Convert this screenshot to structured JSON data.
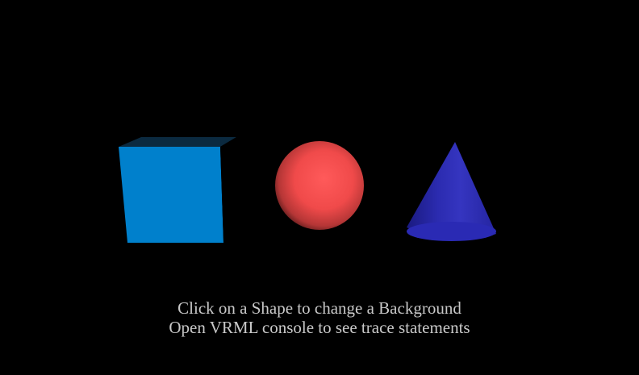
{
  "scene": {
    "background_color": "#000000",
    "shapes": [
      {
        "name": "cube",
        "color": "#0080cc"
      },
      {
        "name": "sphere",
        "color": "#ff5050"
      },
      {
        "name": "cone",
        "color": "#2b2bb0"
      }
    ]
  },
  "captions": {
    "line1": "Click on a Shape to change a Background",
    "line2": "Open VRML console to see trace statements"
  }
}
